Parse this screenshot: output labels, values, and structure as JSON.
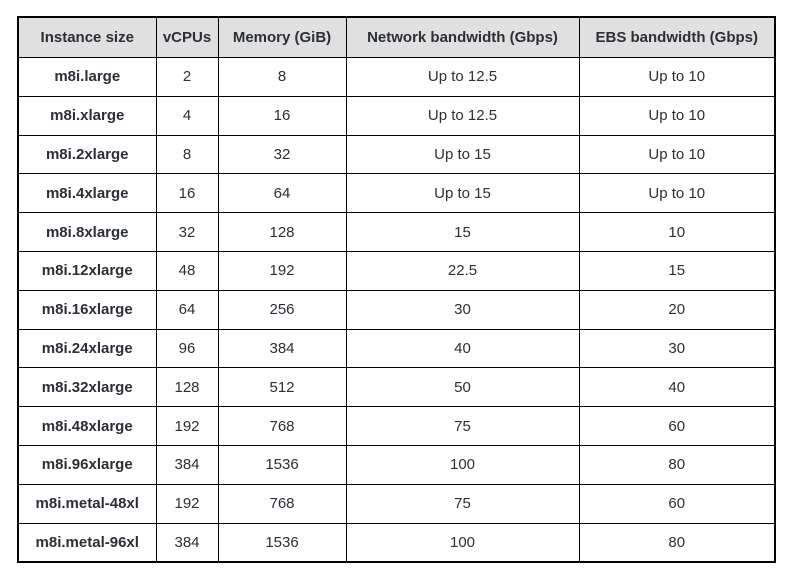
{
  "table": {
    "columns": [
      "Instance size",
      "vCPUs",
      "Memory (GiB)",
      "Network bandwidth (Gbps)",
      "EBS bandwidth (Gbps)"
    ],
    "rows": [
      [
        "m8i.large",
        "2",
        "8",
        "Up to 12.5",
        "Up to 10"
      ],
      [
        "m8i.xlarge",
        "4",
        "16",
        "Up to 12.5",
        "Up to 10"
      ],
      [
        "m8i.2xlarge",
        "8",
        "32",
        "Up to 15",
        "Up to 10"
      ],
      [
        "m8i.4xlarge",
        "16",
        "64",
        "Up to 15",
        "Up to 10"
      ],
      [
        "m8i.8xlarge",
        "32",
        "128",
        "15",
        "10"
      ],
      [
        "m8i.12xlarge",
        "48",
        "192",
        "22.5",
        "15"
      ],
      [
        "m8i.16xlarge",
        "64",
        "256",
        "30",
        "20"
      ],
      [
        "m8i.24xlarge",
        "96",
        "384",
        "40",
        "30"
      ],
      [
        "m8i.32xlarge",
        "128",
        "512",
        "50",
        "40"
      ],
      [
        "m8i.48xlarge",
        "192",
        "768",
        "75",
        "60"
      ],
      [
        "m8i.96xlarge",
        "384",
        "1536",
        "100",
        "80"
      ],
      [
        "m8i.metal-48xl",
        "192",
        "768",
        "75",
        "60"
      ],
      [
        "m8i.metal-96xl",
        "384",
        "1536",
        "100",
        "80"
      ]
    ]
  },
  "colors": {
    "header_bg": "#e0e0e0",
    "border": "#000000",
    "text": "#2b2f36",
    "page_bg": "#ffffff"
  }
}
